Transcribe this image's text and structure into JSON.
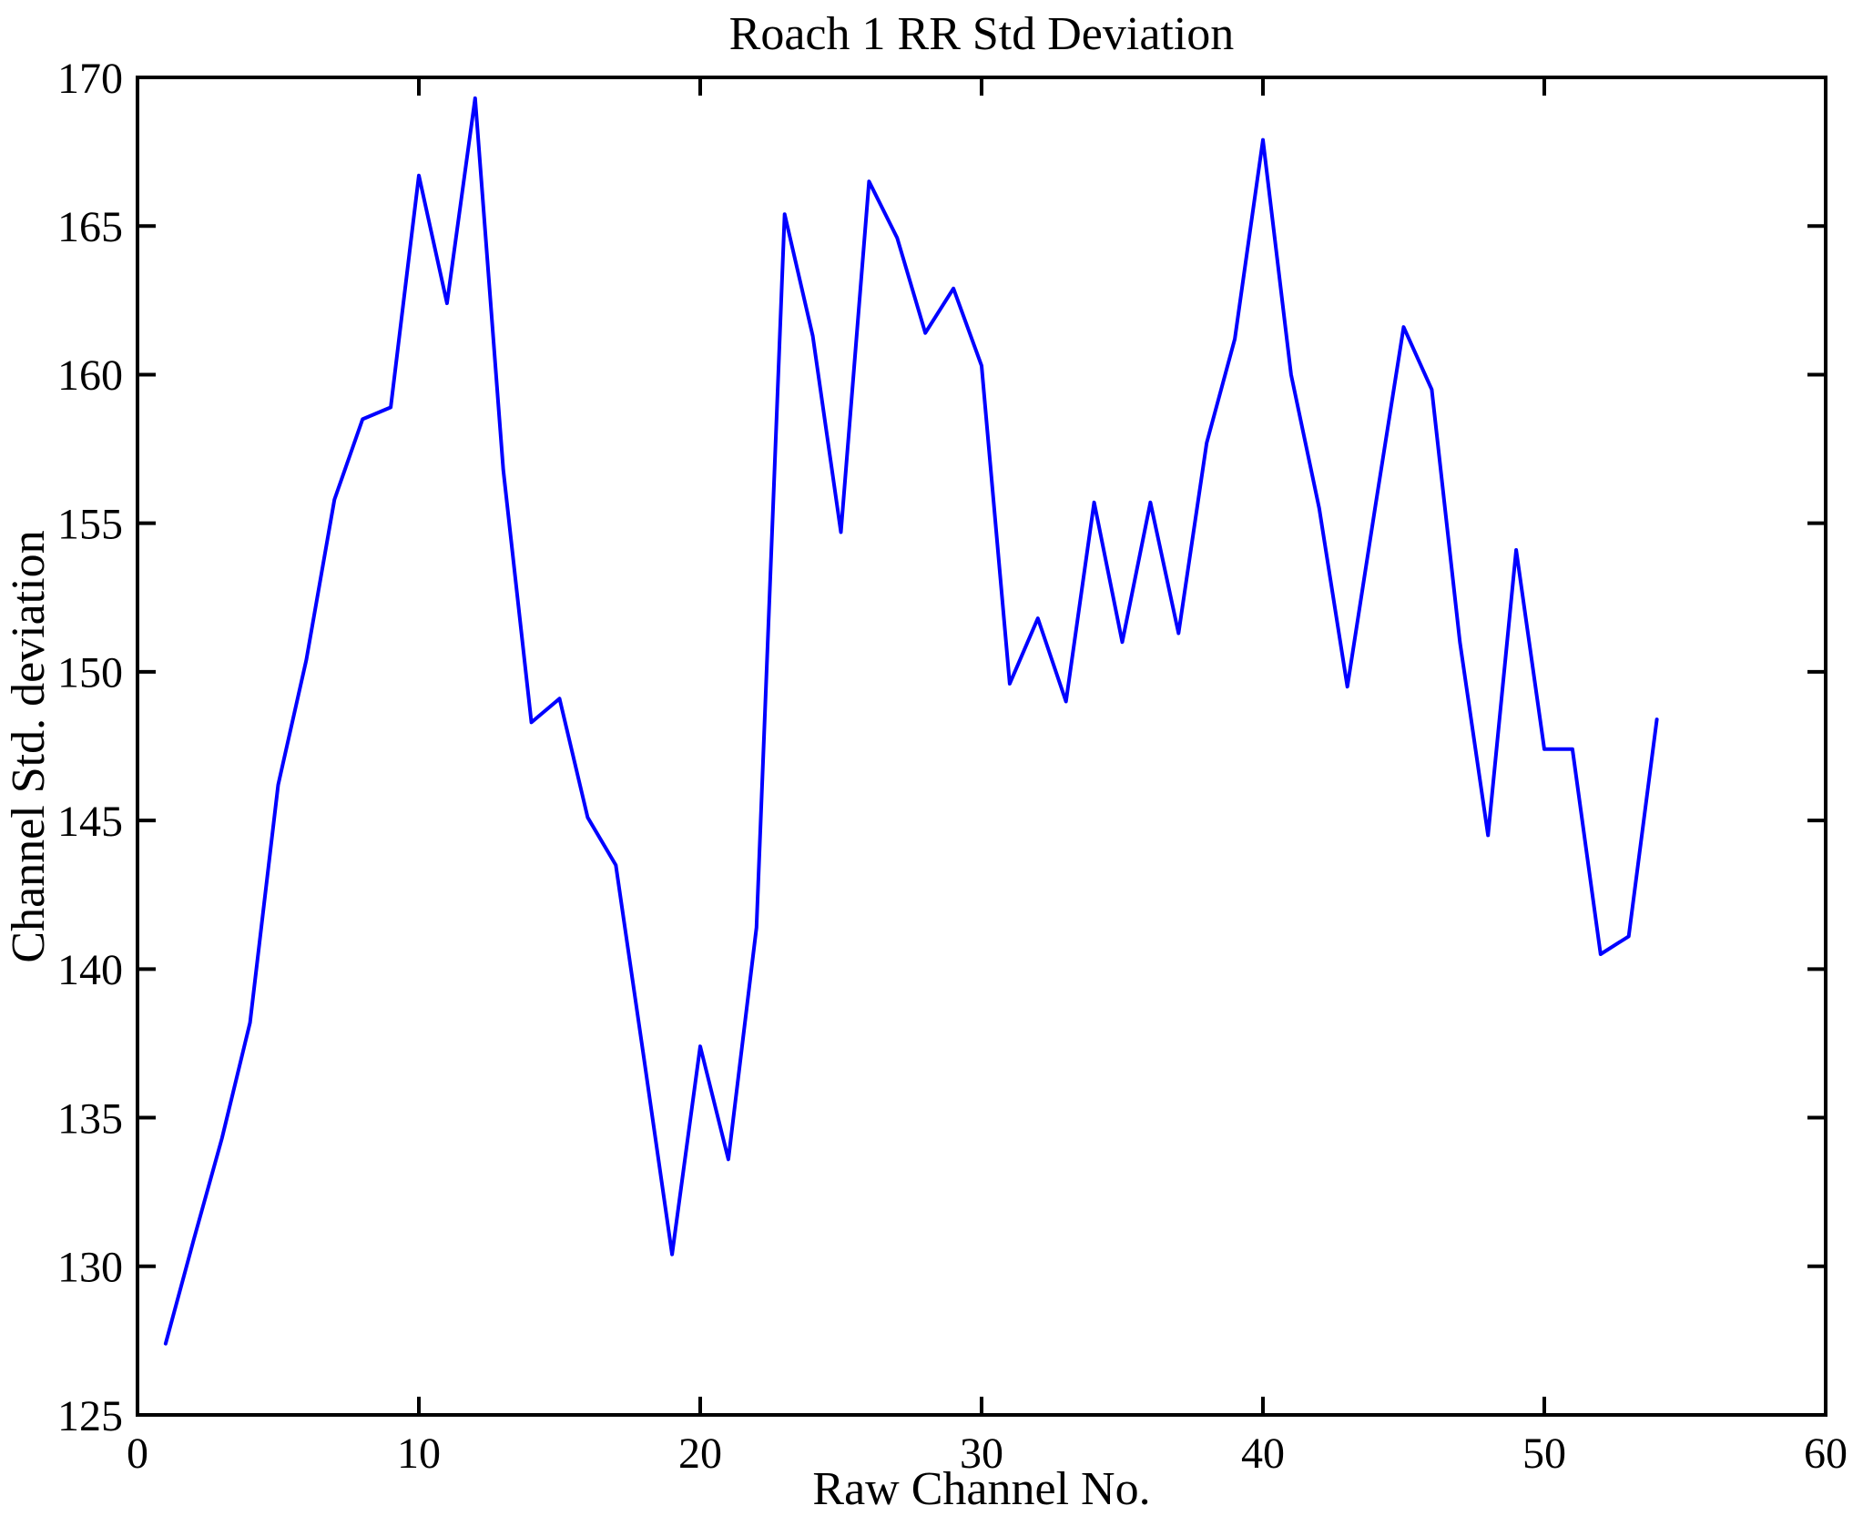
{
  "figure": {
    "title": "Roach 1 RR Std Deviation",
    "xlabel": "Raw Channel No.",
    "ylabel": "Channel Std. deviation"
  },
  "chart_data": {
    "type": "line",
    "title": "Roach 1 RR Std Deviation",
    "xlabel": "Raw Channel No.",
    "ylabel": "Channel Std. deviation",
    "xlim": [
      0,
      60
    ],
    "ylim": [
      125,
      170
    ],
    "x_ticks": [
      0,
      10,
      20,
      30,
      40,
      50,
      60
    ],
    "y_ticks": [
      125,
      130,
      135,
      140,
      145,
      150,
      155,
      160,
      165,
      170
    ],
    "grid": false,
    "legend": null,
    "line_color": "#0000ff",
    "axis_color": "#000000",
    "background_color": "#ffffff",
    "x": [
      1,
      2,
      3,
      4,
      5,
      6,
      7,
      8,
      9,
      10,
      11,
      12,
      13,
      14,
      15,
      16,
      17,
      18,
      19,
      20,
      21,
      22,
      23,
      24,
      25,
      26,
      27,
      28,
      29,
      30,
      31,
      32,
      33,
      34,
      35,
      36,
      37,
      38,
      39,
      40,
      41,
      42,
      43,
      44,
      45,
      46,
      47,
      48,
      49,
      50,
      51,
      52,
      53,
      54
    ],
    "y": [
      127.4,
      130.9,
      134.3,
      138.2,
      146.2,
      150.4,
      155.8,
      158.5,
      158.9,
      166.7,
      162.4,
      169.3,
      156.8,
      148.3,
      149.1,
      145.1,
      143.5,
      137.0,
      130.4,
      137.4,
      133.6,
      141.4,
      165.4,
      161.3,
      154.7,
      166.5,
      164.6,
      161.4,
      162.9,
      160.3,
      149.6,
      151.8,
      149.0,
      155.7,
      151.0,
      155.7,
      151.3,
      157.7,
      161.2,
      167.9,
      160.0,
      155.5,
      149.5,
      155.6,
      161.6,
      159.5,
      151.0,
      144.5,
      154.1,
      147.4,
      147.4,
      140.5,
      141.1,
      148.4
    ]
  }
}
